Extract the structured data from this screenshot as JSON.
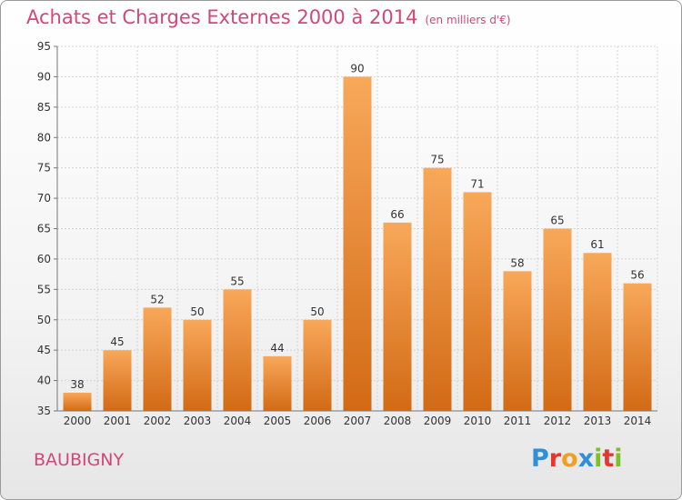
{
  "header": {
    "title": "Achats et Charges Externes 2000 à 2014",
    "unit": "(en milliers d'€)"
  },
  "footer": {
    "commune": "BAUBIGNY",
    "logo_letters": [
      "P",
      "r",
      "o",
      "x",
      "i",
      "t",
      "i"
    ],
    "logo_colors": [
      "#2f8fd8",
      "#e8362f",
      "#f0a020",
      "#2f8fd8",
      "#7fbf2a",
      "#e8362f",
      "#7fbf2a"
    ]
  },
  "chart_data": {
    "type": "bar",
    "title": "Achats et Charges Externes 2000 à 2014",
    "categories": [
      "2000",
      "2001",
      "2002",
      "2003",
      "2004",
      "2005",
      "2006",
      "2007",
      "2008",
      "2009",
      "2010",
      "2011",
      "2012",
      "2013",
      "2014"
    ],
    "values": [
      38,
      45,
      52,
      50,
      55,
      44,
      50,
      90,
      66,
      75,
      71,
      58,
      65,
      61,
      56
    ],
    "ylim": [
      35,
      95
    ],
    "yticks": [
      35,
      40,
      45,
      50,
      55,
      60,
      65,
      70,
      75,
      80,
      85,
      90,
      95
    ],
    "grid": true,
    "bar_color_top": "#f8a85a",
    "bar_color_bottom": "#d26a15"
  }
}
